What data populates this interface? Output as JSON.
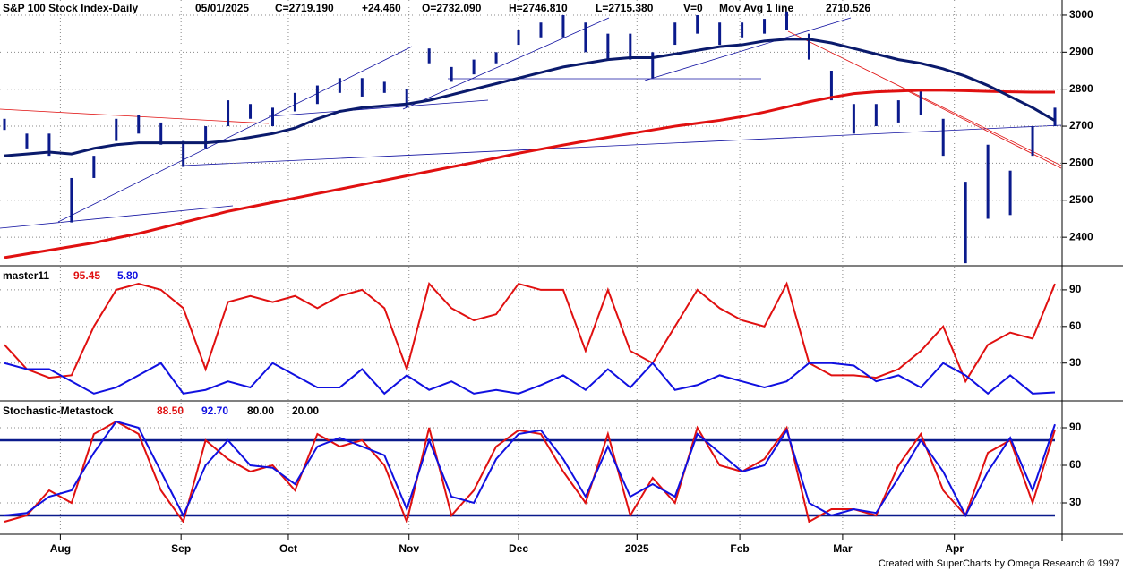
{
  "chart_data": [
    {
      "type": "ohlc",
      "title": "S&P 100 Stock Index-Daily",
      "date": "05/01/2025",
      "close": "C=2719.190",
      "change": "+24.460",
      "open": "O=2732.090",
      "high_label": "H=2746.810",
      "low_label": "L=2715.380",
      "volume": "V=0",
      "indicator": "Mov Avg 1 line",
      "indicator_value": "2710.526",
      "x": [
        0,
        1,
        2,
        3,
        4,
        5,
        6,
        7,
        8,
        9,
        10,
        11,
        12,
        13,
        14,
        15,
        16,
        17,
        18,
        19,
        20,
        21,
        22,
        23,
        24,
        25,
        26,
        27,
        28,
        29,
        30,
        31,
        32,
        33,
        34,
        35,
        36,
        37,
        38,
        39,
        40,
        41,
        42,
        43,
        44,
        45,
        46,
        47
      ],
      "high": [
        2720,
        2680,
        2680,
        2560,
        2620,
        2720,
        2730,
        2710,
        2660,
        2700,
        2770,
        2760,
        2750,
        2790,
        2810,
        2830,
        2830,
        2820,
        2800,
        2910,
        2860,
        2880,
        2900,
        2960,
        2980,
        3000,
        2980,
        2950,
        2950,
        2900,
        2980,
        3000,
        2980,
        2980,
        2990,
        3010,
        2950,
        2850,
        2760,
        2760,
        2770,
        2800,
        2720,
        2550,
        2650,
        2580,
        2700,
        2750
      ],
      "low": [
        2690,
        2640,
        2620,
        2440,
        2560,
        2660,
        2680,
        2650,
        2590,
        2640,
        2700,
        2720,
        2700,
        2740,
        2760,
        2790,
        2780,
        2790,
        2750,
        2870,
        2820,
        2840,
        2870,
        2920,
        2940,
        2940,
        2900,
        2880,
        2880,
        2830,
        2920,
        2950,
        2920,
        2940,
        2950,
        2960,
        2880,
        2770,
        2680,
        2700,
        2710,
        2730,
        2620,
        2330,
        2450,
        2460,
        2620,
        2700
      ],
      "bar_color": "#0a1a8c",
      "series": [
        {
          "color": "#e01010",
          "values": [
            2345,
            2355,
            2365,
            2375,
            2385,
            2398,
            2410,
            2425,
            2440,
            2455,
            2470,
            2482,
            2494,
            2506,
            2518,
            2530,
            2542,
            2554,
            2566,
            2578,
            2590,
            2602,
            2614,
            2627,
            2638,
            2649,
            2660,
            2670,
            2680,
            2690,
            2700,
            2708,
            2716,
            2726,
            2738,
            2752,
            2766,
            2778,
            2788,
            2793,
            2795,
            2797,
            2797,
            2796,
            2794,
            2793,
            2792,
            2792
          ]
        },
        {
          "color": "#0a1a6c",
          "values": [
            2620,
            2625,
            2630,
            2625,
            2640,
            2650,
            2655,
            2655,
            2655,
            2655,
            2660,
            2670,
            2680,
            2695,
            2720,
            2740,
            2750,
            2755,
            2760,
            2770,
            2785,
            2800,
            2815,
            2830,
            2845,
            2860,
            2870,
            2880,
            2885,
            2885,
            2895,
            2905,
            2915,
            2920,
            2930,
            2935,
            2935,
            2925,
            2910,
            2895,
            2880,
            2870,
            2855,
            2835,
            2810,
            2780,
            2750,
            2715
          ]
        }
      ],
      "xlim": [
        0,
        47
      ],
      "ylim": [
        2323,
        3041
      ],
      "yticks": [
        2400,
        2500,
        2600,
        2700,
        2800,
        2900,
        3000
      ],
      "grid": true
    },
    {
      "type": "line",
      "title": "master11",
      "series": [
        {
          "name": "95.45",
          "color": "#e01010",
          "values": [
            45,
            25,
            18,
            20,
            60,
            90,
            95,
            90,
            75,
            25,
            80,
            85,
            80,
            85,
            75,
            85,
            90,
            75,
            25,
            95,
            75,
            65,
            70,
            95,
            90,
            90,
            40,
            90,
            40,
            30,
            60,
            90,
            75,
            65,
            60,
            95,
            30,
            20,
            20,
            18,
            25,
            40,
            60,
            15,
            45,
            55,
            50,
            95
          ]
        },
        {
          "name": "5.80",
          "color": "#1010e0",
          "values": [
            30,
            25,
            25,
            15,
            5,
            10,
            20,
            30,
            5,
            8,
            15,
            10,
            30,
            20,
            10,
            10,
            25,
            5,
            20,
            8,
            15,
            5,
            8,
            5,
            12,
            20,
            8,
            25,
            10,
            30,
            8,
            12,
            20,
            15,
            10,
            15,
            30,
            30,
            28,
            15,
            20,
            10,
            30,
            20,
            5,
            20,
            5,
            6
          ]
        }
      ],
      "ylim": [
        -1,
        109
      ],
      "yticks": [
        30,
        60,
        90
      ],
      "grid": true
    },
    {
      "type": "line",
      "title": "Stochastic-Metastock",
      "series": [
        {
          "name": "88.50",
          "color": "#e01010",
          "values": [
            15,
            20,
            40,
            30,
            85,
            95,
            85,
            40,
            15,
            80,
            65,
            55,
            60,
            40,
            85,
            75,
            80,
            60,
            15,
            90,
            20,
            40,
            75,
            88,
            85,
            55,
            30,
            85,
            20,
            50,
            30,
            90,
            60,
            55,
            65,
            90,
            15,
            25,
            25,
            20,
            60,
            85,
            40,
            20,
            70,
            80,
            30,
            88.5
          ]
        },
        {
          "name": "92.70",
          "color": "#1010e0",
          "values": [
            20,
            22,
            35,
            40,
            70,
            95,
            90,
            55,
            20,
            60,
            80,
            60,
            58,
            45,
            75,
            82,
            75,
            68,
            25,
            80,
            35,
            30,
            65,
            85,
            88,
            65,
            35,
            75,
            35,
            45,
            35,
            85,
            70,
            55,
            60,
            88,
            30,
            20,
            25,
            22,
            50,
            80,
            55,
            20,
            55,
            82,
            40,
            92.7
          ]
        }
      ],
      "levels": [
        {
          "value": 80,
          "label": "80.00"
        },
        {
          "value": 20,
          "label": "20.00"
        }
      ],
      "level_color": "#0a1a8c",
      "ylim": [
        5,
        110
      ],
      "yticks": [
        30,
        60,
        90
      ],
      "grid": true,
      "xticks": [
        {
          "value": 2.5,
          "label": "Aug"
        },
        {
          "value": 7.9,
          "label": "Sep"
        },
        {
          "value": 12.7,
          "label": "Oct"
        },
        {
          "value": 18.1,
          "label": "Nov"
        },
        {
          "value": 23,
          "label": "Dec"
        },
        {
          "value": 28.3,
          "label": "2025"
        },
        {
          "value": 32.9,
          "label": "Feb"
        },
        {
          "value": 37.5,
          "label": "Mar"
        },
        {
          "value": 42.5,
          "label": "Apr"
        }
      ]
    }
  ],
  "footer": "Created with SuperCharts by Omega Research © 1997"
}
